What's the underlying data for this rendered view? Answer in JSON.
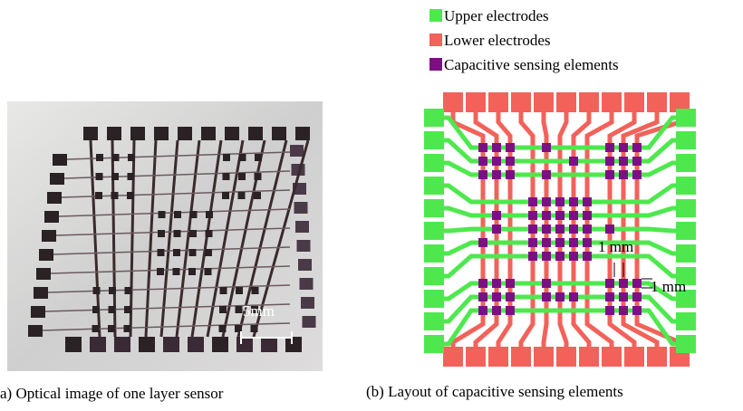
{
  "figure": {
    "left": {
      "scale_label": "5mm",
      "caption": "a) Optical image of one layer sensor"
    },
    "right": {
      "legend": [
        {
          "label": "Upper electrodes",
          "color": "#4ee84e"
        },
        {
          "label": "Lower electrodes",
          "color": "#f2625a"
        },
        {
          "label": "Capacitive sensing elements",
          "color": "#7d0f86"
        }
      ],
      "dimension_labels": [
        "1 mm",
        "1 mm"
      ],
      "caption": "(b) Layout of capacitive sensing elements"
    }
  }
}
